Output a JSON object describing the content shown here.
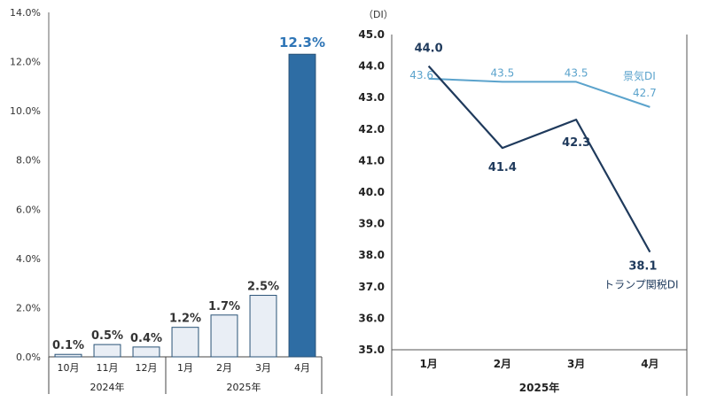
{
  "chart_data": [
    {
      "type": "bar",
      "title": "",
      "xlabel": "",
      "ylabel": "",
      "categories": [
        "10月",
        "11月",
        "12月",
        "1月",
        "2月",
        "3月",
        "4月"
      ],
      "values": [
        0.1,
        0.5,
        0.4,
        1.2,
        1.7,
        2.5,
        12.3
      ],
      "value_labels": [
        "0.1%",
        "0.5%",
        "0.4%",
        "1.2%",
        "1.7%",
        "2.5%",
        "12.3%"
      ],
      "yticks": [
        "0.0%",
        "2.0%",
        "4.0%",
        "6.0%",
        "8.0%",
        "10.0%",
        "12.0%",
        "14.0%"
      ],
      "ylim": [
        0,
        14
      ],
      "groups": [
        {
          "label": "2024年",
          "start": 0,
          "end": 2
        },
        {
          "label": "2025年",
          "start": 3,
          "end": 6
        }
      ],
      "highlight_index": 6,
      "colors": {
        "bar": "#e9eef5",
        "bar_stroke": "#2a5377",
        "highlight": "#2e6da4",
        "highlight_label": "#2e75b6"
      }
    },
    {
      "type": "line",
      "title": "",
      "ylabel": "（DI）",
      "xlabel": "2025年",
      "categories": [
        "1月",
        "2月",
        "3月",
        "4月"
      ],
      "ylim": [
        35,
        45
      ],
      "yticks": [
        "35.0",
        "36.0",
        "37.0",
        "38.0",
        "39.0",
        "40.0",
        "41.0",
        "42.0",
        "43.0",
        "44.0",
        "45.0"
      ],
      "series": [
        {
          "name": "景気DI",
          "values": [
            43.6,
            43.5,
            43.5,
            42.7
          ],
          "value_labels": [
            "43.6",
            "43.5",
            "43.5",
            "42.7"
          ],
          "color": "#5ba3cc"
        },
        {
          "name": "トランプ関税DI",
          "values": [
            44.0,
            41.4,
            42.3,
            38.1
          ],
          "value_labels": [
            "44.0",
            "41.4",
            "42.3",
            "38.1"
          ],
          "color": "#1f3a5c"
        }
      ]
    }
  ]
}
